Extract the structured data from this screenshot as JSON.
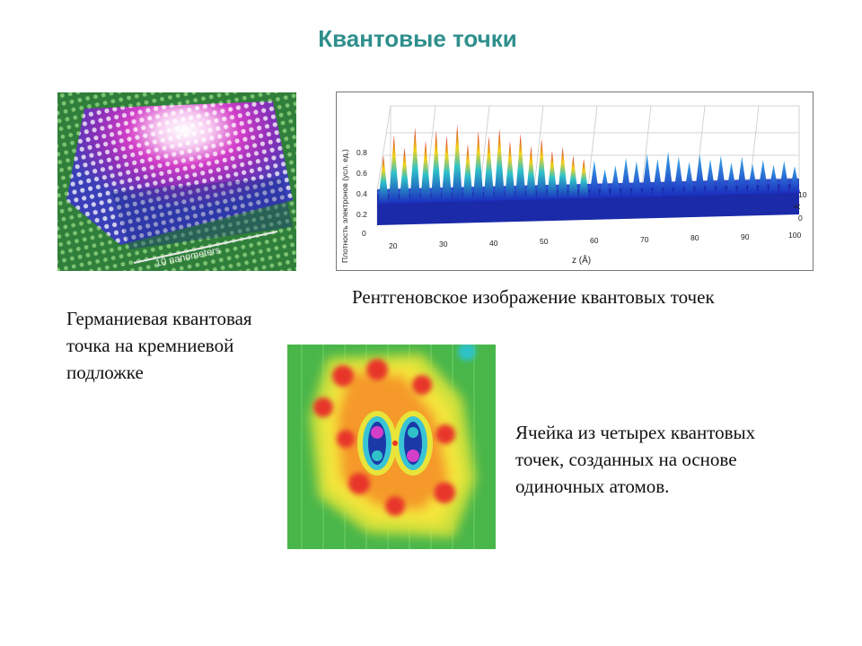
{
  "slide": {
    "title": "Квантовые точки"
  },
  "captions": {
    "germanium": "Германиевая квантовая точка  на кремниевой подложке",
    "xray": "Рентгеновское изображение квантовых точек",
    "cell": "Ячейка из четырех квантовых точек, созданных на  основе одиночных атомов."
  },
  "germanium_image": {
    "scale_label": "10 nanometers"
  },
  "xray_image": {
    "ylabel": "Плотность электронов (усл. ед.)",
    "xlabel": "z (Å)",
    "depth_label": "10",
    "depth_axis_letter": "Å",
    "depth_zero": "0",
    "yticks": [
      "0.8",
      "0.6",
      "0.4",
      "0.2",
      "0"
    ],
    "xticks": [
      "20",
      "30",
      "40",
      "50",
      "60",
      "70",
      "80",
      "90",
      "100"
    ]
  }
}
